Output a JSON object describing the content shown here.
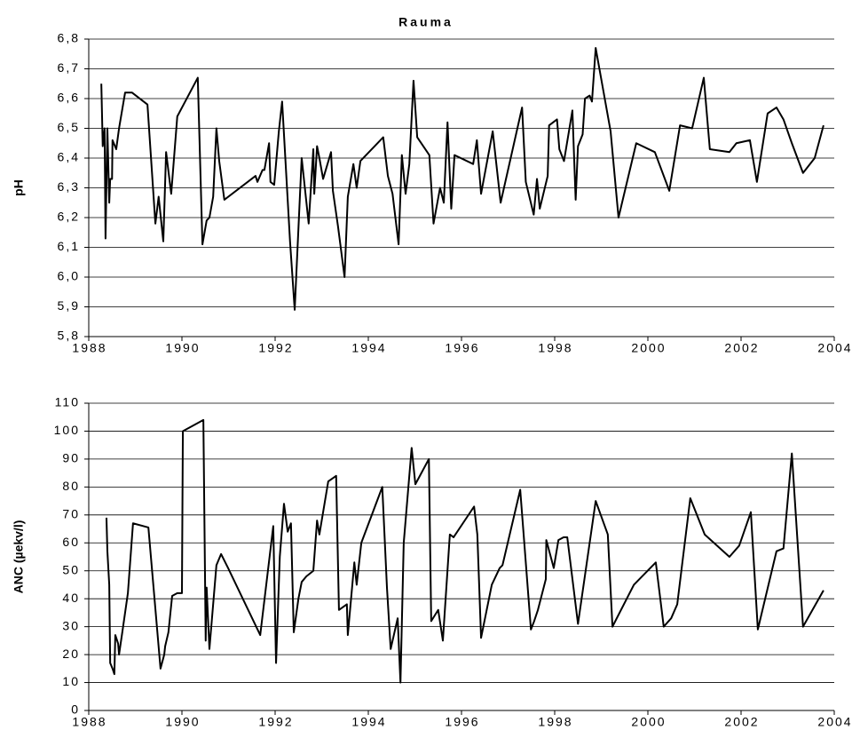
{
  "chart_data": [
    {
      "type": "line",
      "title": "Rauma",
      "ylabel": "pH",
      "grid": true,
      "x": [
        1988.27,
        1988.3,
        1988.34,
        1988.36,
        1988.4,
        1988.44,
        1988.46,
        1988.5,
        1988.51,
        1988.59,
        1988.65,
        1988.78,
        1988.93,
        1989.26,
        1989.43,
        1989.5,
        1989.6,
        1989.66,
        1989.77,
        1989.81,
        1989.9,
        1990.34,
        1990.44,
        1990.53,
        1990.59,
        1990.67,
        1990.74,
        1990.8,
        1990.91,
        1991.58,
        1991.62,
        1991.73,
        1991.77,
        1991.87,
        1991.9,
        1991.98,
        1992.08,
        1992.15,
        1992.32,
        1992.42,
        1992.57,
        1992.72,
        1992.82,
        1992.84,
        1992.9,
        1992.95,
        1993.03,
        1993.2,
        1993.24,
        1993.35,
        1993.49,
        1993.56,
        1993.68,
        1993.75,
        1993.83,
        1994.32,
        1994.42,
        1994.52,
        1994.65,
        1994.72,
        1994.8,
        1994.88,
        1994.97,
        1995.05,
        1995.31,
        1995.4,
        1995.54,
        1995.62,
        1995.7,
        1995.78,
        1995.85,
        1996.25,
        1996.33,
        1996.42,
        1996.67,
        1996.84,
        1997.3,
        1997.38,
        1997.55,
        1997.62,
        1997.68,
        1997.85,
        1997.88,
        1998.05,
        1998.1,
        1998.2,
        1998.38,
        1998.45,
        1998.5,
        1998.6,
        1998.65,
        1998.75,
        1998.8,
        1998.88,
        1999.2,
        1999.37,
        1999.75,
        2000.15,
        2000.46,
        2000.69,
        2000.95,
        2001.2,
        2001.33,
        2001.75,
        2001.9,
        2002.19,
        2002.34,
        2002.57,
        2002.76,
        2002.91,
        2003.09,
        2003.33,
        2003.58,
        2003.77
      ],
      "series": [
        {
          "color": "#000000",
          "values": [
            6.65,
            6.44,
            6.5,
            6.13,
            6.5,
            6.25,
            6.33,
            6.33,
            6.46,
            6.43,
            6.5,
            6.62,
            6.62,
            6.58,
            6.18,
            6.27,
            6.12,
            6.42,
            6.28,
            6.36,
            6.54,
            6.67,
            6.11,
            6.19,
            6.2,
            6.27,
            6.5,
            6.39,
            6.26,
            6.34,
            6.32,
            6.36,
            6.36,
            6.45,
            6.32,
            6.31,
            6.49,
            6.59,
            6.12,
            5.89,
            6.4,
            6.18,
            6.43,
            6.28,
            6.44,
            6.4,
            6.33,
            6.42,
            6.29,
            6.17,
            6.0,
            6.27,
            6.38,
            6.3,
            6.39,
            6.47,
            6.34,
            6.28,
            6.11,
            6.41,
            6.28,
            6.38,
            6.66,
            6.47,
            6.41,
            6.18,
            6.3,
            6.25,
            6.52,
            6.23,
            6.41,
            6.38,
            6.46,
            6.28,
            6.49,
            6.25,
            6.57,
            6.32,
            6.21,
            6.33,
            6.23,
            6.34,
            6.51,
            6.53,
            6.43,
            6.39,
            6.56,
            6.26,
            6.44,
            6.48,
            6.6,
            6.61,
            6.59,
            6.77,
            6.49,
            6.2,
            6.45,
            6.42,
            6.29,
            6.51,
            6.5,
            6.67,
            6.43,
            6.42,
            6.45,
            6.46,
            6.32,
            6.55,
            6.57,
            6.53,
            6.45,
            6.35,
            6.4,
            6.51
          ]
        }
      ],
      "xlim": [
        1988,
        2004
      ],
      "xticks": [
        1988,
        1990,
        1992,
        1994,
        1996,
        1998,
        2000,
        2002,
        2004
      ],
      "ylim": [
        5.8,
        6.8
      ],
      "yticks": [
        {
          "value": 5.8,
          "label": "5,8"
        },
        {
          "value": 5.9,
          "label": "5,9"
        },
        {
          "value": 6.0,
          "label": "6,0"
        },
        {
          "value": 6.1,
          "label": "6,1"
        },
        {
          "value": 6.2,
          "label": "6,2"
        },
        {
          "value": 6.3,
          "label": "6,3"
        },
        {
          "value": 6.4,
          "label": "6,4"
        },
        {
          "value": 6.5,
          "label": "6,5"
        },
        {
          "value": 6.6,
          "label": "6,6"
        },
        {
          "value": 6.7,
          "label": "6,7"
        },
        {
          "value": 6.8,
          "label": "6,8"
        }
      ]
    },
    {
      "type": "line",
      "ylabel": "ANC (µekv/l)",
      "grid": true,
      "x": [
        1988.38,
        1988.4,
        1988.44,
        1988.46,
        1988.51,
        1988.55,
        1988.57,
        1988.63,
        1988.65,
        1988.72,
        1988.84,
        1988.95,
        1989.28,
        1989.54,
        1989.62,
        1989.64,
        1989.71,
        1989.79,
        1989.9,
        1990.0,
        1990.02,
        1990.46,
        1990.51,
        1990.53,
        1990.59,
        1990.74,
        1990.84,
        1990.99,
        1991.68,
        1991.96,
        1992.02,
        1992.1,
        1992.19,
        1992.27,
        1992.34,
        1992.4,
        1992.5,
        1992.57,
        1992.67,
        1992.82,
        1992.9,
        1992.95,
        1993.14,
        1993.31,
        1993.37,
        1993.54,
        1993.56,
        1993.7,
        1993.75,
        1993.85,
        1994.3,
        1994.4,
        1994.48,
        1994.63,
        1994.69,
        1994.76,
        1994.93,
        1995.01,
        1995.3,
        1995.35,
        1995.5,
        1995.6,
        1995.75,
        1995.83,
        1996.27,
        1996.34,
        1996.42,
        1996.65,
        1996.82,
        1996.88,
        1997.26,
        1997.49,
        1997.56,
        1997.64,
        1997.81,
        1997.82,
        1997.98,
        1998.08,
        1998.19,
        1998.27,
        1998.5,
        1998.88,
        1999.14,
        1999.24,
        1999.7,
        2000.17,
        2000.34,
        2000.5,
        2000.63,
        2000.91,
        2001.22,
        2001.75,
        2001.96,
        2002.21,
        2002.36,
        2002.76,
        2002.91,
        2003.09,
        2003.33,
        2003.77
      ],
      "series": [
        {
          "color": "#000000",
          "values": [
            69,
            57,
            45,
            17,
            15,
            13,
            27,
            24,
            20,
            28,
            42,
            67,
            65.5,
            15,
            20,
            23,
            28,
            41,
            42,
            42,
            100,
            104,
            25,
            44,
            22,
            52,
            56,
            51,
            27,
            66,
            17,
            55,
            74,
            64,
            67,
            28,
            40,
            46,
            48,
            50,
            68,
            63,
            82,
            84,
            36,
            38,
            27,
            53,
            45,
            60,
            80,
            44,
            22,
            33,
            10,
            60,
            94,
            81,
            90,
            32,
            36,
            25,
            63,
            62,
            73,
            63,
            26,
            45,
            51,
            52,
            79,
            29,
            32,
            36,
            47,
            61,
            51,
            61,
            62,
            62,
            31,
            75,
            63,
            30,
            45,
            53,
            30,
            33,
            38,
            76,
            63,
            55,
            59,
            71,
            29,
            57,
            58,
            92,
            30,
            43
          ]
        }
      ],
      "xlim": [
        1988,
        2004
      ],
      "xticks": [
        1988,
        1990,
        1992,
        1994,
        1996,
        1998,
        2000,
        2002,
        2004
      ],
      "ylim": [
        0,
        110
      ],
      "yticks": [
        0,
        10,
        20,
        30,
        40,
        50,
        60,
        70,
        80,
        90,
        100,
        110
      ]
    }
  ]
}
